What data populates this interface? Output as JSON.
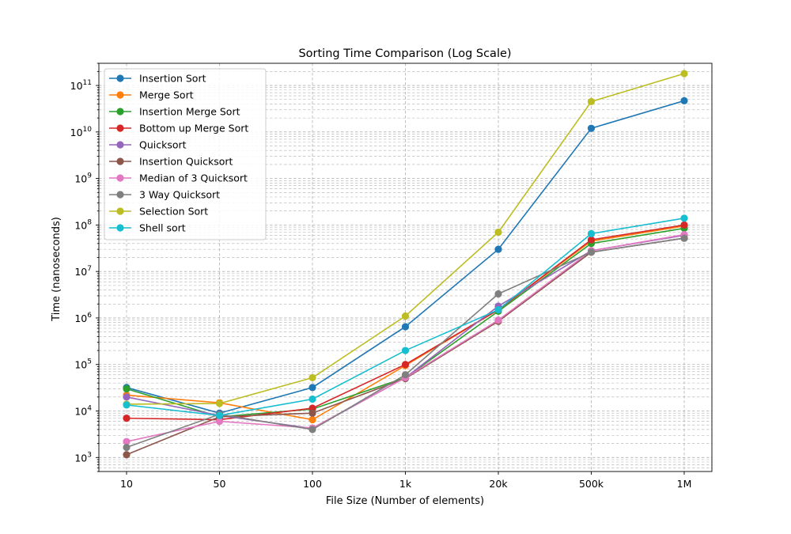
{
  "chart_data": {
    "type": "line",
    "title": "Sorting Time Comparison (Log Scale)",
    "xlabel": "File Size (Number of elements)",
    "ylabel": "Time (nanoseconds)",
    "categories": [
      "10",
      "50",
      "100",
      "1k",
      "20k",
      "500k",
      "1M"
    ],
    "y_scale": "log",
    "ylim": [
      500,
      300000000000
    ],
    "y_ticks": [
      {
        "base": "10",
        "exp": "3",
        "value": 1000
      },
      {
        "base": "10",
        "exp": "4",
        "value": 10000
      },
      {
        "base": "10",
        "exp": "5",
        "value": 100000
      },
      {
        "base": "10",
        "exp": "6",
        "value": 1000000
      },
      {
        "base": "10",
        "exp": "7",
        "value": 10000000
      },
      {
        "base": "10",
        "exp": "8",
        "value": 100000000
      },
      {
        "base": "10",
        "exp": "9",
        "value": 1000000000
      },
      {
        "base": "10",
        "exp": "10",
        "value": 10000000000
      },
      {
        "base": "10",
        "exp": "11",
        "value": 100000000000
      }
    ],
    "grid": true,
    "legend_position": "top-left",
    "series": [
      {
        "name": "Insertion Sort",
        "color": "#1f77b4",
        "values": [
          32000,
          9000,
          32000,
          650000,
          30000000,
          12000000000,
          47000000000
        ]
      },
      {
        "name": "Merge Sort",
        "color": "#ff7f0e",
        "values": [
          22000,
          15000,
          6500,
          95000,
          1500000,
          45000000,
          95000000
        ]
      },
      {
        "name": "Insertion Merge Sort",
        "color": "#2ca02c",
        "values": [
          30000,
          7500,
          11000,
          52000,
          1400000,
          40000000,
          85000000
        ]
      },
      {
        "name": "Bottom up Merge Sort",
        "color": "#d62728",
        "values": [
          7000,
          6500,
          11500,
          100000,
          1500000,
          48000000,
          100000000
        ]
      },
      {
        "name": "Quicksort",
        "color": "#9467bd",
        "values": [
          20000,
          8000,
          4200,
          52000,
          1800000,
          28000000,
          60000000
        ]
      },
      {
        "name": "Insertion Quicksort",
        "color": "#8c564b",
        "values": [
          1150,
          7500,
          9000,
          50000,
          850000,
          26000000,
          52000000
        ]
      },
      {
        "name": "Median of 3 Quicksort",
        "color": "#e377c2",
        "values": [
          2200,
          6000,
          4300,
          52000,
          900000,
          28000000,
          62000000
        ]
      },
      {
        "name": "3 Way Quicksort",
        "color": "#7f7f7f",
        "values": [
          1650,
          8500,
          4000,
          60000,
          3300000,
          26000000,
          52000000
        ]
      },
      {
        "name": "Selection Sort",
        "color": "#bcbd22",
        "values": [
          14000,
          14500,
          52000,
          1100000,
          70000000,
          45000000000,
          180000000000
        ]
      },
      {
        "name": "Shell sort",
        "color": "#17becf",
        "values": [
          13500,
          8000,
          18000,
          200000,
          1500000,
          65000000,
          140000000
        ]
      }
    ]
  }
}
